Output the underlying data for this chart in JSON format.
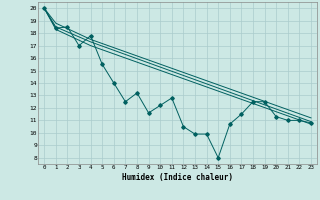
{
  "xlabel": "Humidex (Indice chaleur)",
  "background_color": "#cce8e4",
  "grid_color": "#aacccc",
  "line_color": "#006060",
  "xlim": [
    -0.5,
    23.5
  ],
  "ylim": [
    7.5,
    20.5
  ],
  "yticks": [
    8,
    9,
    10,
    11,
    12,
    13,
    14,
    15,
    16,
    17,
    18,
    19,
    20
  ],
  "xticks": [
    0,
    1,
    2,
    3,
    4,
    5,
    6,
    7,
    8,
    9,
    10,
    11,
    12,
    13,
    14,
    15,
    16,
    17,
    18,
    19,
    20,
    21,
    22,
    23
  ],
  "line1_x": [
    0,
    1,
    2,
    3,
    4,
    5,
    6,
    7,
    8,
    9,
    10,
    11,
    12,
    13,
    14,
    15,
    16,
    17,
    18,
    19,
    20,
    21,
    22,
    23
  ],
  "line1_y": [
    20.0,
    18.4,
    18.5,
    17.0,
    17.8,
    15.5,
    14.0,
    12.5,
    13.2,
    11.6,
    12.2,
    12.8,
    10.5,
    9.9,
    9.9,
    8.0,
    10.7,
    11.5,
    12.5,
    12.5,
    11.3,
    11.0,
    11.0,
    10.8
  ],
  "line2_x": [
    0,
    1,
    4,
    23
  ],
  "line2_y": [
    20.0,
    18.8,
    17.5,
    11.2
  ],
  "line3_x": [
    0,
    1,
    4,
    23
  ],
  "line3_y": [
    20.0,
    18.5,
    17.3,
    10.9
  ],
  "line4_x": [
    0,
    1,
    4,
    23
  ],
  "line4_y": [
    20.0,
    18.3,
    17.0,
    10.7
  ]
}
